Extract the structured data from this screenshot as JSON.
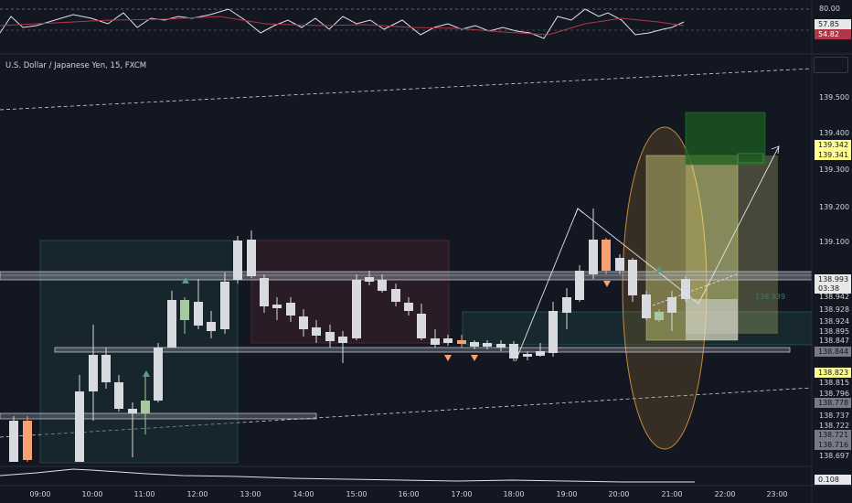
{
  "symbol": {
    "title": "U.S. Dollar / Japanese Yen, 15, FXCM"
  },
  "rsi_panel": {
    "level_label": "80.00",
    "value_white": "57.85",
    "value_red": "54.82"
  },
  "price_axis": {
    "labels": [
      "139.500",
      "139.400",
      "139.300",
      "139.200",
      "139.100",
      "138.942",
      "138.928",
      "138.924",
      "138.895",
      "138.847",
      "138.815",
      "138.796",
      "138.737",
      "138.722",
      "138.697"
    ],
    "tags": [
      {
        "text": "139.342",
        "bg": "#fffe93",
        "fg": "#131722"
      },
      {
        "text": "139.341",
        "bg": "#fffe93",
        "fg": "#131722"
      },
      {
        "text": "138.993",
        "bg": "#e8e8e8",
        "fg": "#131722"
      },
      {
        "text": "03:38",
        "bg": "#e8e8e8",
        "fg": "#131722"
      },
      {
        "text": "138.844",
        "bg": "#787b86",
        "fg": "#131722"
      },
      {
        "text": "138.823",
        "bg": "#fffe93",
        "fg": "#131722"
      },
      {
        "text": "138.778",
        "bg": "#787b86",
        "fg": "#131722"
      },
      {
        "text": "138.721",
        "bg": "#787b86",
        "fg": "#131722"
      },
      {
        "text": "138.716",
        "bg": "#787b86",
        "fg": "#131722"
      }
    ],
    "bottom_panel_value": "0.108",
    "shadow_label": "138.939"
  },
  "time_axis": {
    "labels": [
      "09:00",
      "10:00",
      "11:00",
      "12:00",
      "13:00",
      "14:00",
      "15:00",
      "16:00",
      "17:00",
      "18:00",
      "19:00",
      "20:00",
      "21:00",
      "22:00",
      "23:00"
    ]
  },
  "colors": {
    "background": "#131722",
    "candle": "#d9d9e0",
    "accent_orange": "#f7a172",
    "accent_green": "#a6c9a0",
    "target_green": "#1b5e20",
    "zone_yellow": "#fffe93"
  }
}
